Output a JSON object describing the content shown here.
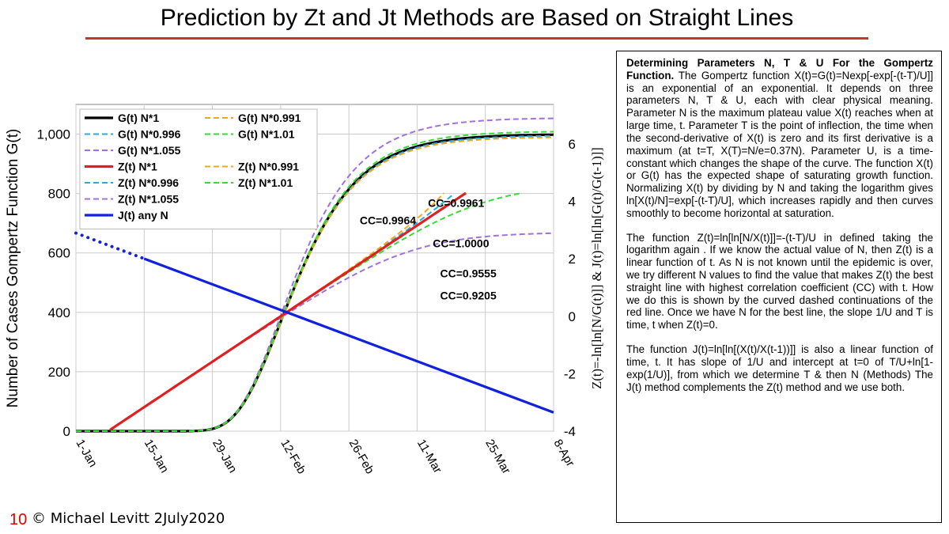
{
  "title": "Prediction by Zt and Jt Methods are Based on Straight Lines",
  "footer": {
    "page_number": "10",
    "credit": "© Michael Levitt 2July2020"
  },
  "text_panel": {
    "p1": {
      "heading": "Determining Parameters N, T & U For the Gompertz Function.",
      "s1": "The Gompertz function X(t)=G(t)=Nexp[-exp[-(t-T)/U]] is an exponential of an exponential.",
      "s2": "It depends on three parameters N, T & U, each with clear physical meaning.",
      "s3": "Parameter N is the maximum plateau value X(t) reaches when at large time, t.",
      "s4": "Parameter T is the point of inflection, the time when the second-derivative of X(t) is zero and its first derivative is a maximum (at t=T, X(T)=N/e=0.37N).",
      "s5": "Parameter U, is a time-constant which changes the shape of the curve.",
      "s6": "The function X(t) or G(t) has the expected shape of saturating growth function.",
      "s7": "Normalizing X(t) by dividing by N and taking the logarithm gives ln[X(t)/N]=exp[-(t-T)/U], which increases rapidly and then curves smoothly to become horizontal at saturation."
    },
    "p2": {
      "s1": "The function Z(t)=ln[ln[N/X(t)]]=-(t-T)/U in defined taking the logarithm again .",
      "s2": "If we know the actual value of N, then Z(t) is a linear function of t.",
      "s3": "As N is not known until the epidemic is over, we try different N values to find the value that makes Z(t) the best straight line with highest correlation coefficient (CC) with t.",
      "s4": "How we do this is shown by the curved dashed continuations of the red line.",
      "s5": "Once we have N for the best line, the slope 1/U and T is time, t when Z(t)=0."
    },
    "p3": {
      "s1": "The function J(t)=ln[ln[(X(t)/X(t-1))]] is also a linear function of time, t.",
      "s2": "It has slope of 1/U and intercept at t=0 of T/U+ln[1-exp(1/U)], from which we determine T & then N (Methods)",
      "s3": "The J(t) method complements the Z(t) method and we use both."
    }
  },
  "chart_data": {
    "type": "line",
    "xlabel": "",
    "ylabel": "Number of Cases Gompertz Function G(t)",
    "y2label": "Z(t)=-ln[ln[N/G(t)]] & J(t)=ln[ln[G(t)/G(t-1)]]",
    "x_ticks": [
      "1-Jan",
      "15-Jan",
      "29-Jan",
      "12-Feb",
      "26-Feb",
      "11-Mar",
      "25-Mar",
      "8-Apr"
    ],
    "x_tick_days": [
      0,
      14,
      28,
      42,
      56,
      70,
      84,
      98
    ],
    "xlim": [
      0,
      98
    ],
    "ylim": [
      0,
      1100
    ],
    "y_ticks": [
      "0",
      "200",
      "400",
      "600",
      "800",
      "1,000"
    ],
    "y_tick_values": [
      0,
      200,
      400,
      600,
      800,
      1000
    ],
    "y2lim": [
      -4,
      7.38
    ],
    "y2_ticks": [
      "-4",
      "-2",
      "0",
      "2",
      "4",
      "6"
    ],
    "y2_tick_values": [
      -4,
      -2,
      0,
      2,
      4,
      6
    ],
    "grid": true,
    "legend": "top-left",
    "gompertz_params": {
      "N": 1000,
      "T_day": 42,
      "U_days": 8.85
    },
    "series": [
      {
        "name": "G(t) N*1",
        "axis": "left",
        "factor": 1,
        "color": "#000000",
        "style": "solid"
      },
      {
        "name": "G(t) N*0.996",
        "axis": "left",
        "factor": 0.996,
        "color": "#29a9e0",
        "style": "dashed"
      },
      {
        "name": "G(t) N*1.055",
        "axis": "left",
        "factor": 1.055,
        "color": "#a070e0",
        "style": "dashed"
      },
      {
        "name": "G(t) N*0.991",
        "axis": "left",
        "factor": 0.991,
        "color": "#f0a818",
        "style": "dashed"
      },
      {
        "name": "G(t) N*1.01",
        "axis": "left",
        "factor": 1.01,
        "color": "#33dd33",
        "style": "dashed"
      },
      {
        "name": "Z(t) N*1",
        "axis": "right",
        "factor": 1,
        "color": "#e02020",
        "style": "solid"
      },
      {
        "name": "Z(t) N*0.996",
        "axis": "right",
        "factor": 0.996,
        "color": "#29a9e0",
        "style": "dashed"
      },
      {
        "name": "Z(t) N*1.055",
        "axis": "right",
        "factor": 1.055,
        "color": "#a070e0",
        "style": "dashed"
      },
      {
        "name": "Z(t) N*0.991",
        "axis": "right",
        "factor": 0.991,
        "color": "#f0a818",
        "style": "dashed"
      },
      {
        "name": "Z(t) N*1.01",
        "axis": "right",
        "factor": 1.01,
        "color": "#33dd33",
        "style": "dashed"
      },
      {
        "name": "J(t) any N",
        "axis": "right",
        "color": "#1020e0",
        "style": "solid",
        "x": [
          0,
          98
        ],
        "y": [
          2.9,
          -3.35
        ],
        "dotted_until": 14
      }
    ],
    "legend_order": [
      "G(t) N*1",
      "G(t) N*0.991",
      "G(t) N*0.996",
      "G(t) N*1.01",
      "G(t) N*1.055",
      "Z(t) N*1",
      "Z(t) N*0.991",
      "Z(t) N*0.996",
      "Z(t) N*1.01",
      "Z(t) N*1.055",
      "J(t) any N"
    ],
    "annotations": [
      {
        "text": "CC=0.9964",
        "x": 64,
        "y2": 3.35
      },
      {
        "text": "CC=0.9961",
        "x": 78,
        "y2": 3.95
      },
      {
        "text": "CC=1.0000",
        "x": 79,
        "y2": 2.55
      },
      {
        "text": "CC=0.9555",
        "x": 80.5,
        "y2": 1.5
      },
      {
        "text": "CC=0.9205",
        "x": 80.5,
        "y2": 0.72
      }
    ]
  },
  "colors": {
    "title_rule": "#c0392b",
    "page_number": "#e00000"
  }
}
